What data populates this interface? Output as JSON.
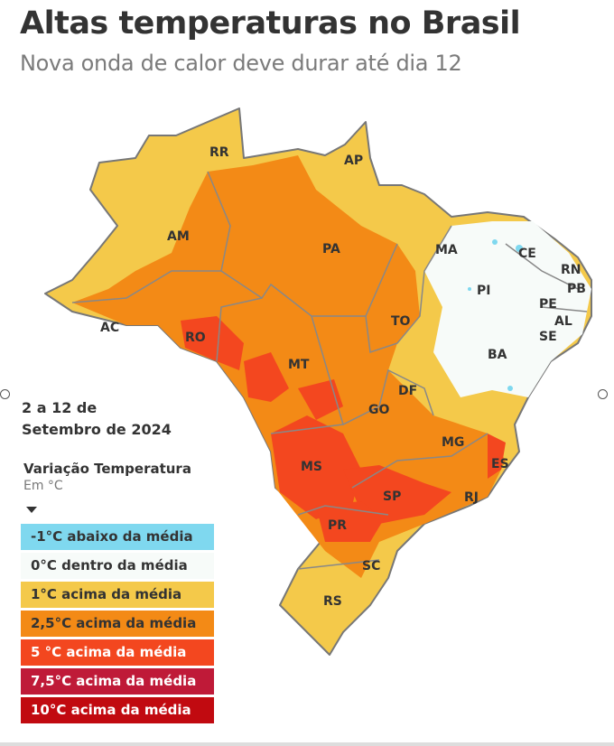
{
  "header": {
    "title": "Altas temperaturas no Brasil",
    "subtitle": "Nova onda de calor deve durar até dia 12"
  },
  "period": {
    "line1": "2 a 12 de",
    "line2": "Setembro de 2024"
  },
  "legend": {
    "title": "Variação Temperatura",
    "unit": "Em °C",
    "items": [
      {
        "label": "-1°C abaixo da média",
        "color": "#7fd8ef",
        "text": "#333333"
      },
      {
        "label": "0°C dentro da média",
        "color": "#f7fbf9",
        "text": "#333333"
      },
      {
        "label": "1°C acima da média",
        "color": "#f4c94a",
        "text": "#333333"
      },
      {
        "label": "2,5°C acima da média",
        "color": "#f38a16",
        "text": "#333333"
      },
      {
        "label": "5 °C acima da média",
        "color": "#f3471f",
        "text": "#ffffff"
      },
      {
        "label": "7,5°C acima da média",
        "color": "#bf1a38",
        "text": "#ffffff"
      },
      {
        "label": "10°C acima da média",
        "color": "#c10a10",
        "text": "#ffffff"
      }
    ]
  },
  "states": {
    "RR": "RR",
    "AP": "AP",
    "AM": "AM",
    "PA": "PA",
    "MA": "MA",
    "CE": "CE",
    "RN": "RN",
    "PB": "PB",
    "PE": "PE",
    "AL": "AL",
    "SE": "SE",
    "PI": "PI",
    "AC": "AC",
    "RO": "RO",
    "TO": "TO",
    "BA": "BA",
    "MT": "MT",
    "DF": "DF",
    "GO": "GO",
    "MG": "MG",
    "ES": "ES",
    "MS": "MS",
    "SP": "SP",
    "RJ": "RJ",
    "PR": "PR",
    "SC": "SC",
    "RS": "RS"
  }
}
